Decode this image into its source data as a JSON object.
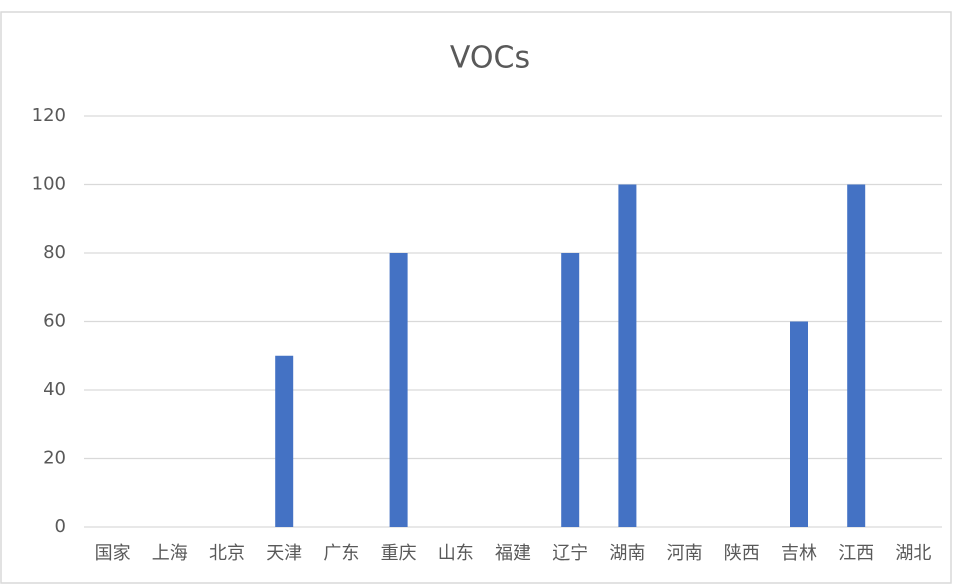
{
  "chart_data": {
    "type": "bar",
    "title": "VOCs",
    "categories": [
      "国家",
      "上海",
      "北京",
      "天津",
      "广东",
      "重庆",
      "山东",
      "福建",
      "辽宁",
      "湖南",
      "河南",
      "陕西",
      "吉林",
      "江西",
      "湖北"
    ],
    "values": [
      0,
      0,
      0,
      50,
      0,
      80,
      0,
      0,
      80,
      100,
      0,
      0,
      60,
      100,
      0
    ],
    "color": "#4472c4",
    "ylim": [
      0,
      120
    ],
    "yticks": [
      0,
      20,
      40,
      60,
      80,
      100,
      120
    ],
    "grid": true
  }
}
